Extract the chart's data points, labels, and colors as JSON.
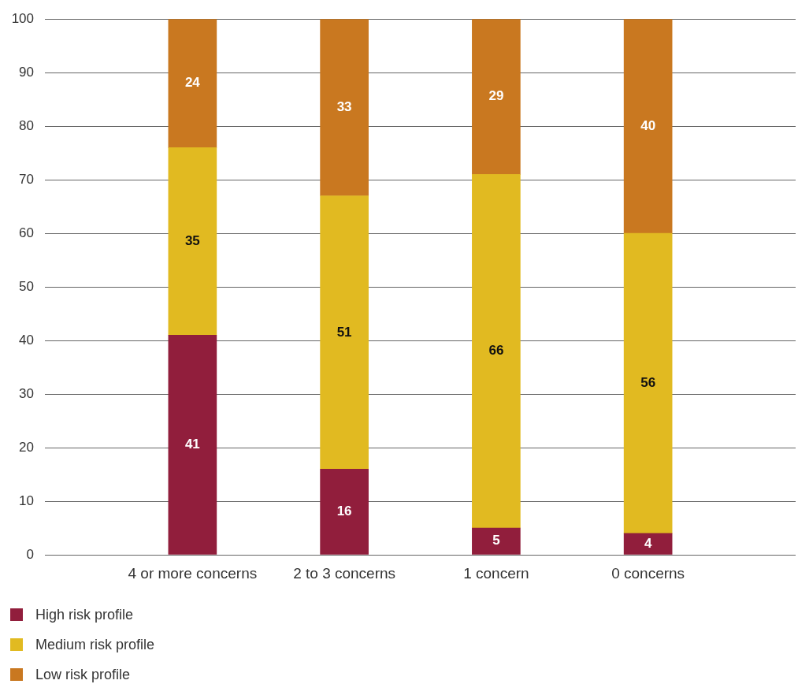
{
  "chart_data": {
    "type": "bar",
    "categories": [
      "4 or more concerns",
      "2 to 3 concerns",
      "1 concern",
      "0 concerns"
    ],
    "series": [
      {
        "name": "High risk profile",
        "color": "#911e3c",
        "values": [
          41,
          16,
          5,
          4
        ]
      },
      {
        "name": "Medium risk profile",
        "color": "#e1ba21",
        "values": [
          35,
          51,
          66,
          56
        ]
      },
      {
        "name": "Low risk profile",
        "color": "#c97820",
        "values": [
          24,
          33,
          29,
          40
        ]
      }
    ],
    "stacked": true,
    "ylim": [
      0,
      100
    ],
    "yticks": [
      0,
      10,
      20,
      30,
      40,
      50,
      60,
      70,
      80,
      90,
      100
    ],
    "grid": "y",
    "legend": "bottom left",
    "data_labels": true
  }
}
